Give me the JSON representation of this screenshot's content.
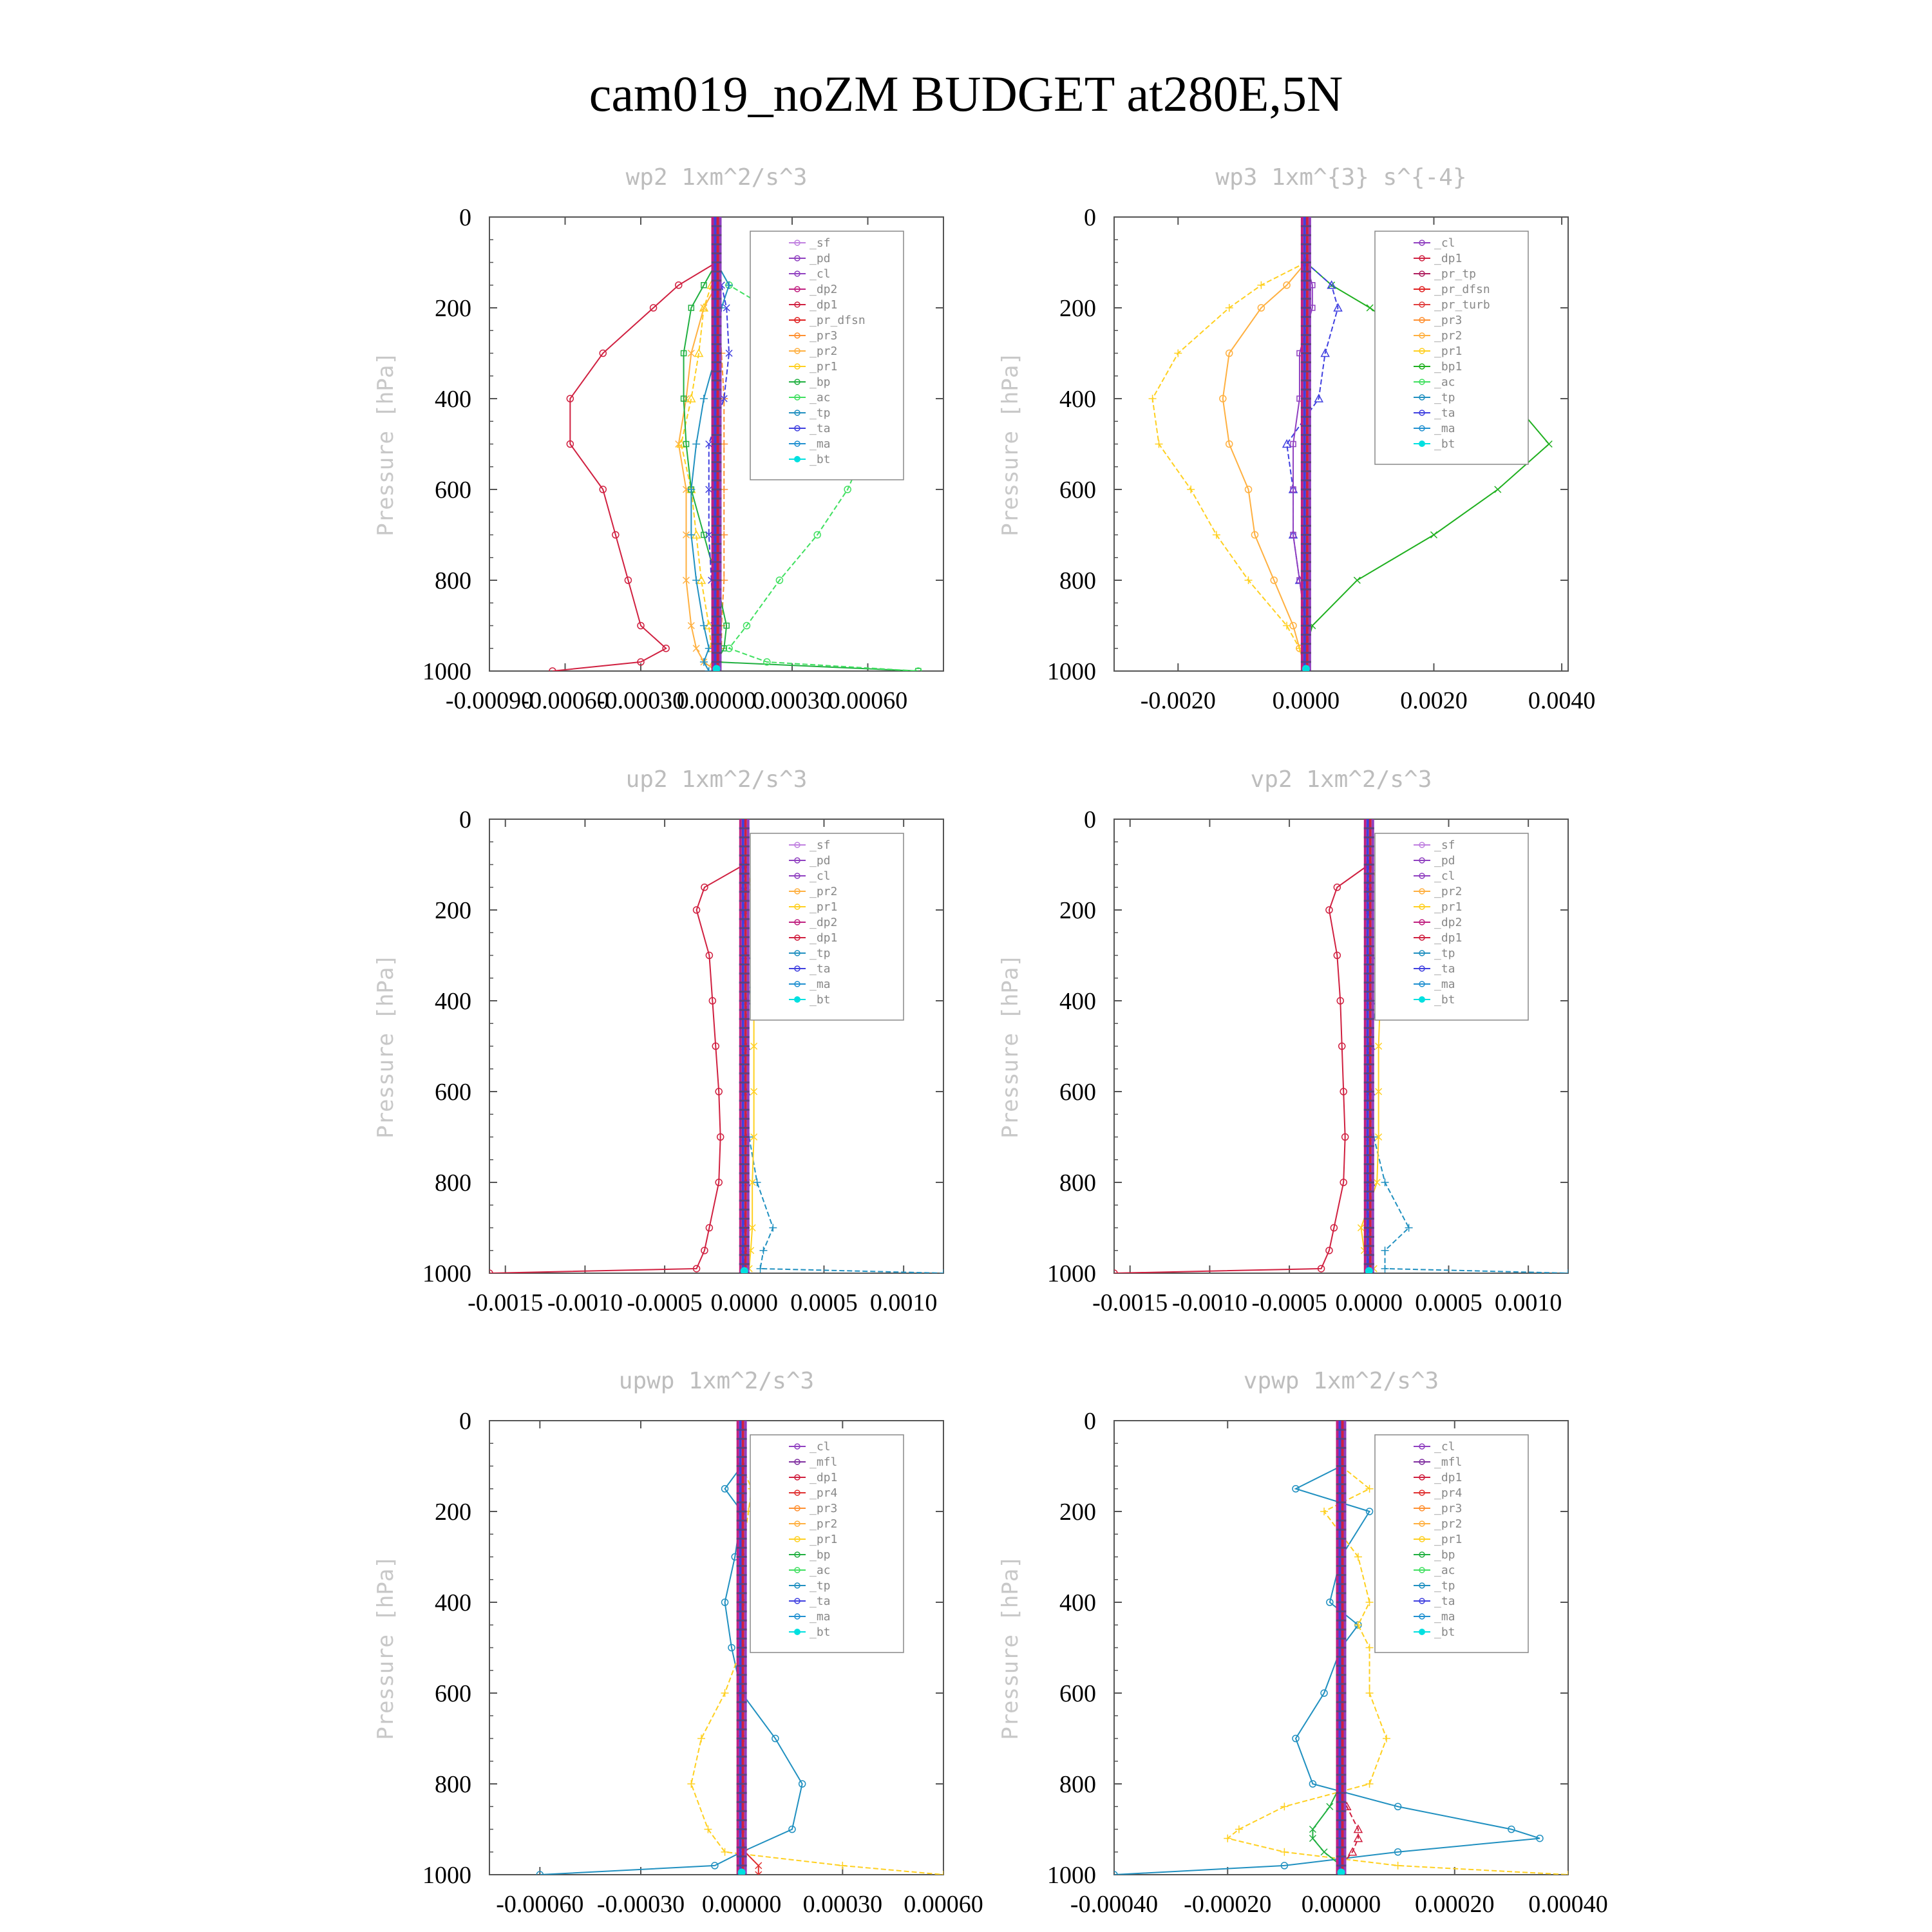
{
  "title": "cam019_noZM  BUDGET at280E,5N",
  "colors": {
    "_sf": "#c080e0",
    "_pd": "#9040c0",
    "_cl": "#9040c0",
    "_mfl": "#8030a0",
    "_dp1": "#d02040",
    "_dp2": "#c02080",
    "_pr_dfsn": "#e02020",
    "_pr_tp": "#b02060",
    "_pr_turb": "#e04040",
    "_pr1": "#ffd020",
    "_pr2": "#ffb040",
    "_pr3": "#ff9030",
    "_pr4": "#e03030",
    "_bp": "#20b040",
    "_bp1": "#20b020",
    "_ac": "#40e060",
    "_tp": "#2090c0",
    "_ta": "#4040e0",
    "_ma": "#2090d0",
    "_bt": "#00e0e0",
    "up_dp1": "#40e060",
    "up_dp2": "#20a040"
  },
  "chart_data": [
    {
      "type": "line",
      "title": "wp2   1xm^2/s^3",
      "ylabel": "Pressure [hPa]",
      "ylim": [
        1000,
        0
      ],
      "xlim": [
        -0.0009,
        0.0009
      ],
      "xticks": [
        "-0.00090",
        "-0.00060",
        "-0.00030",
        "0.00000",
        "0.00030",
        "0.00060"
      ],
      "yticks": [
        "0",
        "200",
        "400",
        "600",
        "800",
        "1000"
      ],
      "legend": [
        "_sf",
        "_pd",
        "_cl",
        "_dp2",
        "_dp1",
        "_pr_dfsn",
        "_pr3",
        "_pr2",
        "_pr1",
        "_bp",
        "_ac",
        "_tp",
        "_ta",
        "_ma",
        "_bt"
      ],
      "legend_position": "top-right",
      "y": [
        100,
        150,
        200,
        300,
        400,
        500,
        600,
        700,
        800,
        900,
        950,
        980,
        1000
      ],
      "series": [
        {
          "name": "_dp1",
          "values": [
            0.0,
            -0.00015,
            -0.00025,
            -0.00045,
            -0.00058,
            -0.00058,
            -0.00045,
            -0.0004,
            -0.00035,
            -0.0003,
            -0.0002,
            -0.0003,
            -0.00065
          ]
        },
        {
          "name": "_pr3",
          "values": [
            0.0,
            0.0,
            1e-05,
            2e-05,
            3e-05,
            3e-05,
            3e-05,
            3e-05,
            3e-05,
            2e-05,
            2e-05,
            1e-05,
            0.0
          ]
        },
        {
          "name": "_pr2",
          "values": [
            0.0,
            0.0,
            -5e-05,
            -0.0001,
            -0.00012,
            -0.00015,
            -0.00012,
            -0.00012,
            -0.00012,
            -0.0001,
            -8e-05,
            -5e-05,
            0.0
          ]
        },
        {
          "name": "_pr1",
          "values": [
            0.0,
            -2e-05,
            -5e-05,
            -7e-05,
            -0.0001,
            -0.00014,
            -0.0001,
            -8e-05,
            -6e-05,
            -3e-05,
            -2e-05,
            -1e-05,
            0.0
          ]
        },
        {
          "name": "_bp",
          "values": [
            0.0,
            -5e-05,
            -0.0001,
            -0.00013,
            -0.00013,
            -0.00012,
            -0.0001,
            -5e-05,
            0.0,
            4e-05,
            3e-05,
            0.0,
            0.0008
          ]
        },
        {
          "name": "_ac",
          "values": [
            0.0,
            5e-05,
            0.0002,
            0.00035,
            0.00045,
            0.0006,
            0.00052,
            0.0004,
            0.00025,
            0.00012,
            5e-05,
            0.0002,
            0.0008
          ]
        },
        {
          "name": "_tp",
          "values": [
            0.0,
            5e-05,
            2e-05,
            0.0,
            -5e-05,
            -8e-05,
            -0.0001,
            -0.0001,
            -8e-05,
            -5e-05,
            -3e-05,
            -5e-05,
            -3e-05
          ]
        },
        {
          "name": "_ta",
          "values": [
            0.0,
            2e-05,
            4e-05,
            5e-05,
            3e-05,
            -3e-05,
            -3e-05,
            -3e-05,
            -2e-05,
            -1e-05,
            0.0,
            0.0,
            0.0
          ]
        },
        {
          "name": "_bt",
          "values": [
            0,
            0,
            0,
            0,
            0,
            0,
            0,
            0,
            0,
            0,
            0,
            0,
            0
          ]
        }
      ]
    },
    {
      "type": "line",
      "title": "wp3   1xm^{3} s^{-4}",
      "ylabel": "Pressure [hPa]",
      "ylim": [
        1000,
        0
      ],
      "xlim": [
        -0.003,
        0.0041
      ],
      "xticks": [
        "-0.0020",
        "0.0000",
        "0.0020",
        "0.0040"
      ],
      "yticks": [
        "0",
        "200",
        "400",
        "600",
        "800",
        "1000"
      ],
      "legend": [
        "_cl",
        "_dp1",
        "_pr_tp",
        "_pr_dfsn",
        "_pr_turb",
        "_pr3",
        "_pr2",
        "_pr1",
        "_bp1",
        "_ac",
        "_tp",
        "_ta",
        "_ma",
        "_bt"
      ],
      "legend_position": "top-right",
      "y": [
        100,
        150,
        200,
        300,
        400,
        500,
        600,
        700,
        800,
        900,
        950,
        1000
      ],
      "series": [
        {
          "name": "_pr2",
          "values": [
            0.0,
            -0.0003,
            -0.0007,
            -0.0012,
            -0.0013,
            -0.0012,
            -0.0009,
            -0.0008,
            -0.0005,
            -0.0002,
            -0.0001,
            0.0
          ]
        },
        {
          "name": "_pr1",
          "values": [
            0.0,
            -0.0007,
            -0.0012,
            -0.002,
            -0.0024,
            -0.0023,
            -0.0018,
            -0.0014,
            -0.0009,
            -0.0003,
            -0.0001,
            0.0
          ]
        },
        {
          "name": "_bp1",
          "values": [
            0.0,
            0.0004,
            0.001,
            0.002,
            0.0032,
            0.0038,
            0.003,
            0.002,
            0.0008,
            0.0001,
            0.0,
            0.0
          ]
        },
        {
          "name": "_ta",
          "values": [
            0.0,
            0.0004,
            0.0005,
            0.0003,
            0.0002,
            -0.0003,
            -0.0002,
            -0.0002,
            -0.0001,
            0.0,
            0.0,
            0.0
          ]
        },
        {
          "name": "_cl",
          "values": [
            0.0,
            0.0001,
            0.0001,
            -0.0001,
            -0.0001,
            -0.0002,
            -0.0002,
            -0.0002,
            -0.0001,
            0.0,
            0.0,
            0.0
          ]
        },
        {
          "name": "_bt",
          "values": [
            0,
            0,
            0,
            0,
            0,
            0,
            0,
            0,
            0,
            0,
            0,
            0
          ]
        }
      ]
    },
    {
      "type": "line",
      "title": "up2   1xm^2/s^3",
      "ylabel": "Pressure [hPa]",
      "ylim": [
        1000,
        0
      ],
      "xlim": [
        -0.0016,
        0.00125
      ],
      "xticks": [
        "-0.0015",
        "-0.0010",
        "-0.0005",
        "0.0000",
        "0.0005",
        "0.0010"
      ],
      "yticks": [
        "0",
        "200",
        "400",
        "600",
        "800",
        "1000"
      ],
      "legend": [
        "_sf",
        "_pd",
        "_cl",
        "_pr2",
        "_pr1",
        "_dp2",
        "_dp1",
        "_tp",
        "_ta",
        "_ma",
        "_bt"
      ],
      "legend_position": "top-right",
      "y": [
        100,
        150,
        200,
        300,
        400,
        500,
        600,
        700,
        800,
        900,
        950,
        990,
        1000
      ],
      "series": [
        {
          "name": "_dp1",
          "values": [
            0.0,
            -0.00025,
            -0.0003,
            -0.00022,
            -0.0002,
            -0.00018,
            -0.00016,
            -0.00015,
            -0.00016,
            -0.00022,
            -0.00025,
            -0.0003,
            -0.0016
          ]
        },
        {
          "name": "_tp",
          "values": [
            0.0,
            0.00018,
            0.00022,
            8e-05,
            2e-05,
            0.0,
            0.0,
            3e-05,
            8e-05,
            0.00018,
            0.00012,
            0.0001,
            0.00125
          ]
        },
        {
          "name": "_pr1",
          "values": [
            0.0,
            5e-05,
            6e-05,
            6e-05,
            6e-05,
            6e-05,
            6e-05,
            6e-05,
            5e-05,
            5e-05,
            4e-05,
            3e-05,
            0.0
          ]
        },
        {
          "name": "_ta",
          "values": [
            0.0,
            0.0,
            0.0,
            1e-05,
            1e-05,
            1e-05,
            1e-05,
            1e-05,
            1e-05,
            0.0,
            0.0,
            0.0,
            0.0
          ]
        },
        {
          "name": "_bt",
          "values": [
            0,
            0,
            0,
            0,
            0,
            0,
            0,
            0,
            0,
            0,
            0,
            0,
            0
          ]
        }
      ]
    },
    {
      "type": "line",
      "title": "vp2   1xm^2/s^3",
      "ylabel": "Pressure [hPa]",
      "ylim": [
        1000,
        0
      ],
      "xlim": [
        -0.0016,
        0.00125
      ],
      "xticks": [
        "-0.0015",
        "-0.0010",
        "-0.0005",
        "0.0000",
        "0.0005",
        "0.0010"
      ],
      "yticks": [
        "0",
        "200",
        "400",
        "600",
        "800",
        "1000"
      ],
      "legend": [
        "_sf",
        "_pd",
        "_cl",
        "_pr2",
        "_pr1",
        "_dp2",
        "_dp1",
        "_tp",
        "_ta",
        "_ma",
        "_bt"
      ],
      "legend_position": "top-right",
      "y": [
        100,
        150,
        200,
        300,
        400,
        500,
        600,
        700,
        800,
        900,
        950,
        990,
        1000
      ],
      "series": [
        {
          "name": "_dp1",
          "values": [
            0.0,
            -0.0002,
            -0.00025,
            -0.0002,
            -0.00018,
            -0.00017,
            -0.00016,
            -0.00015,
            -0.00016,
            -0.00022,
            -0.00025,
            -0.0003,
            -0.0016
          ]
        },
        {
          "name": "_tp",
          "values": [
            0.0,
            0.00015,
            0.00018,
            0.0001,
            5e-05,
            0.0,
            0.0,
            3e-05,
            0.0001,
            0.00025,
            0.0001,
            0.0001,
            0.00125
          ]
        },
        {
          "name": "_pr1",
          "values": [
            0.0,
            8e-05,
            0.0001,
            8e-05,
            7e-05,
            6e-05,
            6e-05,
            6e-05,
            5e-05,
            -5e-05,
            -3e-05,
            3e-05,
            0.0
          ]
        },
        {
          "name": "_ta",
          "values": [
            0.0,
            0.0,
            0.0,
            1e-05,
            1e-05,
            1e-05,
            1e-05,
            1e-05,
            1e-05,
            0.0,
            0.0,
            0.0,
            0.0
          ]
        },
        {
          "name": "_bt",
          "values": [
            0,
            0,
            0,
            0,
            0,
            0,
            0,
            0,
            0,
            0,
            0,
            0,
            0
          ]
        }
      ]
    },
    {
      "type": "line",
      "title": "upwp   1xm^2/s^3",
      "ylabel": "Pressure [hPa]",
      "ylim": [
        1000,
        0
      ],
      "xlim": [
        -0.00075,
        0.0006
      ],
      "xticks": [
        "-0.00060",
        "-0.00030",
        "0.00000",
        "0.00030",
        "0.00060"
      ],
      "yticks": [
        "0",
        "200",
        "400",
        "600",
        "800",
        "1000"
      ],
      "legend": [
        "_cl",
        "_mfl",
        "_dp1",
        "_pr4",
        "_pr3",
        "_pr2",
        "_pr1",
        "_bp",
        "_ac",
        "_tp",
        "_ta",
        "_ma",
        "_bt"
      ],
      "legend_position": "top-right",
      "y": [
        100,
        150,
        200,
        300,
        400,
        500,
        600,
        700,
        800,
        900,
        950,
        980,
        1000
      ],
      "series": [
        {
          "name": "_tp",
          "values": [
            0.0,
            -5e-05,
            0.0,
            -2e-05,
            -5e-05,
            -3e-05,
            0.0,
            0.0001,
            0.00018,
            0.00015,
            0.0,
            -8e-05,
            -0.0006
          ]
        },
        {
          "name": "_pr1",
          "values": [
            0.0,
            3e-05,
            2e-05,
            0.0,
            0.0,
            0.0,
            -5e-05,
            -0.00012,
            -0.00015,
            -0.0001,
            -5e-05,
            0.0003,
            0.0006
          ]
        },
        {
          "name": "_pr4",
          "values": [
            0.0,
            0.0,
            0.0,
            0.0,
            0.0,
            0.0,
            0.0,
            0.0,
            0.0,
            0.0,
            1e-05,
            5e-05,
            5e-05
          ]
        },
        {
          "name": "_bt",
          "values": [
            0,
            0,
            0,
            0,
            0,
            0,
            0,
            0,
            0,
            0,
            0,
            0,
            0
          ]
        }
      ]
    },
    {
      "type": "line",
      "title": "vpwp   1xm^2/s^3",
      "ylabel": "Pressure [hPa]",
      "ylim": [
        1000,
        0
      ],
      "xlim": [
        -0.0004,
        0.0004
      ],
      "xticks": [
        "-0.00040",
        "-0.00020",
        "0.00000",
        "0.00020",
        "0.00040"
      ],
      "yticks": [
        "0",
        "200",
        "400",
        "600",
        "800",
        "1000"
      ],
      "legend": [
        "_cl",
        "_mfl",
        "_dp1",
        "_pr4",
        "_pr3",
        "_pr2",
        "_pr1",
        "_bp",
        "_ac",
        "_tp",
        "_ta",
        "_ma",
        "_bt"
      ],
      "legend_position": "top-right",
      "y": [
        100,
        150,
        200,
        300,
        400,
        450,
        500,
        600,
        700,
        800,
        850,
        900,
        920,
        950,
        980,
        1000
      ],
      "series": [
        {
          "name": "_tp",
          "values": [
            0.0,
            -8e-05,
            5e-05,
            0.0,
            -2e-05,
            3e-05,
            0.0,
            -3e-05,
            -8e-05,
            -5e-05,
            0.0001,
            0.0003,
            0.00035,
            0.0001,
            -0.0001,
            -0.0004
          ]
        },
        {
          "name": "_pr1",
          "values": [
            0.0,
            5e-05,
            -3e-05,
            3e-05,
            5e-05,
            3e-05,
            5e-05,
            5e-05,
            8e-05,
            5e-05,
            -0.0001,
            -0.00018,
            -0.0002,
            -0.0001,
            0.0001,
            0.0004
          ]
        },
        {
          "name": "_bp",
          "values": [
            0.0,
            0.0,
            0.0,
            0.0,
            0.0,
            0.0,
            0.0,
            0.0,
            0.0,
            0.0,
            -2e-05,
            -5e-05,
            -5e-05,
            -3e-05,
            0.0,
            0.0
          ]
        },
        {
          "name": "_dp1",
          "values": [
            0.0,
            0.0,
            0.0,
            0.0,
            0.0,
            0.0,
            0.0,
            0.0,
            0.0,
            0.0,
            1e-05,
            3e-05,
            3e-05,
            2e-05,
            0.0,
            0.0
          ]
        },
        {
          "name": "_bt",
          "values": [
            0,
            0,
            0,
            0,
            0,
            0,
            0,
            0,
            0,
            0,
            0,
            0,
            0,
            0,
            0,
            0
          ]
        }
      ]
    }
  ]
}
